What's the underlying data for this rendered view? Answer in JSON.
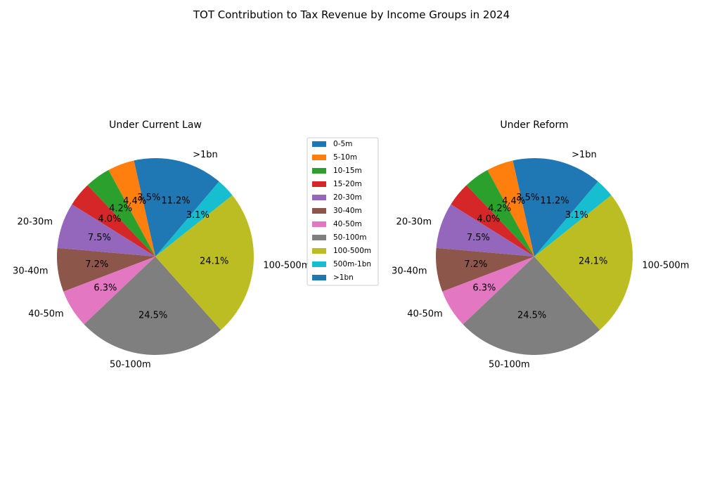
{
  "figure": {
    "title": "TOT Contribution to Tax Revenue by Income Groups in 2024"
  },
  "legend": {
    "placement": "center"
  },
  "chart_data": [
    {
      "type": "pie",
      "title": "Under Current Law",
      "labels": [
        "0-5m",
        "5-10m",
        "10-15m",
        "15-20m",
        "20-30m",
        "30-40m",
        "40-50m",
        "50-100m",
        "100-500m",
        "500m-1bn",
        ">1bn"
      ],
      "values": [
        3.5,
        4.4,
        4.2,
        4.0,
        7.5,
        7.2,
        6.3,
        24.5,
        24.1,
        3.1,
        11.2
      ],
      "value_labels": [
        "3.5%",
        "4.4%",
        "4.2%",
        "4.0%",
        "7.5%",
        "7.2%",
        "6.3%",
        "24.5%",
        "24.1%",
        "3.1%",
        "11.2%"
      ],
      "outer_labels": [
        "",
        "",
        "",
        "",
        "20-30m",
        "30-40m",
        "40-50m",
        "50-100m",
        "100-500m",
        "",
        ">1bn"
      ],
      "colors": [
        "#1f77b4",
        "#ff7f0e",
        "#2ca02c",
        "#d62728",
        "#9467bd",
        "#8c564b",
        "#e377c2",
        "#7f7f7f",
        "#bcbd22",
        "#17becf",
        "#1f77b4"
      ],
      "start_angle": 90,
      "direction": "counterclockwise"
    },
    {
      "type": "pie",
      "title": "Under Reform",
      "labels": [
        "0-5m",
        "5-10m",
        "10-15m",
        "15-20m",
        "20-30m",
        "30-40m",
        "40-50m",
        "50-100m",
        "100-500m",
        "500m-1bn",
        ">1bn"
      ],
      "values": [
        3.5,
        4.4,
        4.2,
        4.0,
        7.5,
        7.2,
        6.3,
        24.5,
        24.1,
        3.1,
        11.2
      ],
      "value_labels": [
        "3.5%",
        "4.4%",
        "4.2%",
        "4.0%",
        "7.5%",
        "7.2%",
        "6.3%",
        "24.5%",
        "24.1%",
        "3.1%",
        "11.2%"
      ],
      "outer_labels": [
        "",
        "",
        "",
        "",
        "20-30m",
        "30-40m",
        "40-50m",
        "50-100m",
        "100-500m",
        "",
        ">1bn"
      ],
      "colors": [
        "#1f77b4",
        "#ff7f0e",
        "#2ca02c",
        "#d62728",
        "#9467bd",
        "#8c564b",
        "#e377c2",
        "#7f7f7f",
        "#bcbd22",
        "#17becf",
        "#1f77b4"
      ],
      "start_angle": 90,
      "direction": "counterclockwise"
    }
  ]
}
